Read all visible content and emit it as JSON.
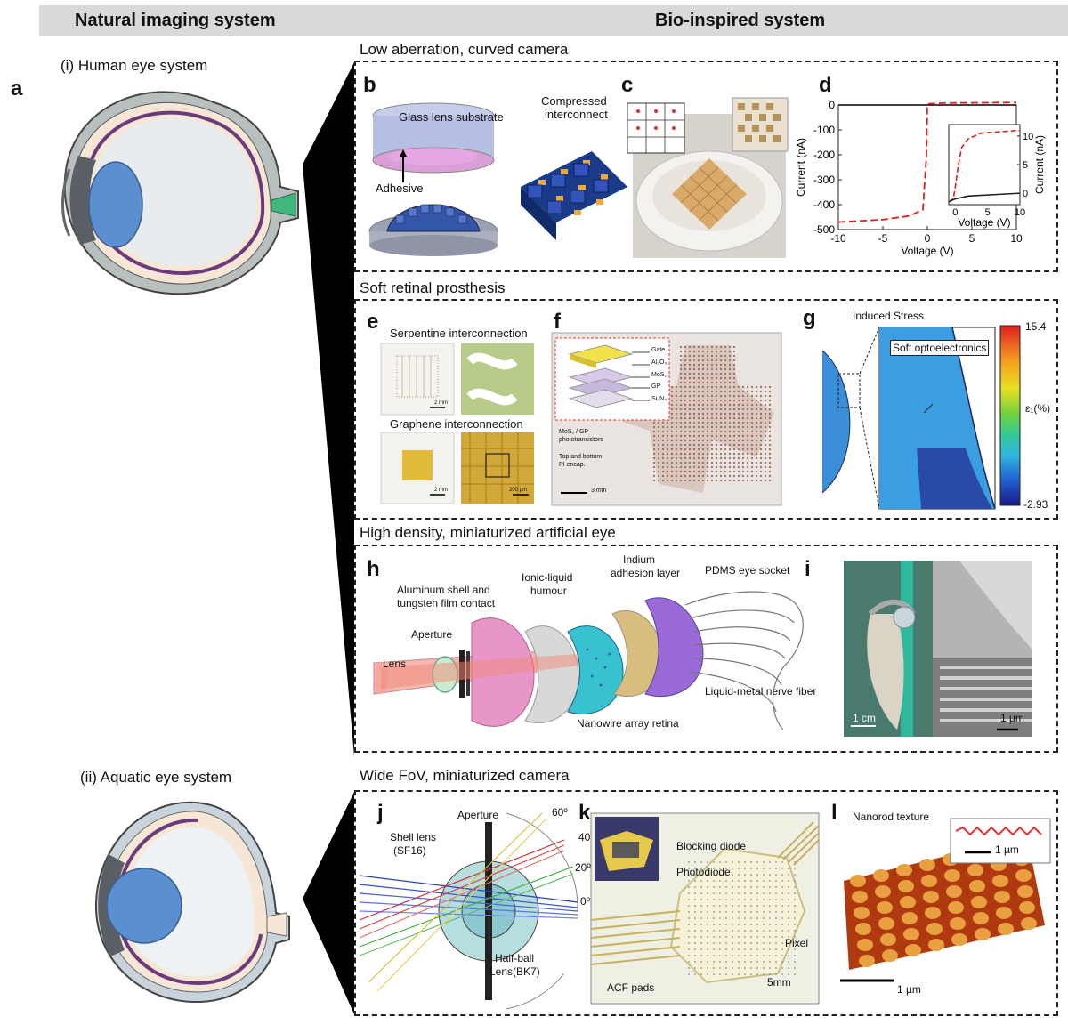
{
  "header": {
    "left": "Natural imaging system",
    "right": "Bio-inspired system"
  },
  "natural": {
    "panel_a": "a",
    "human": "(i) Human eye system",
    "aquatic": "(ii) Aquatic eye system"
  },
  "sections": {
    "s1": "Low aberration, curved camera",
    "s2": "Soft retinal prosthesis",
    "s3": "High density, miniaturized artificial eye",
    "s4": "Wide FoV, miniaturized camera"
  },
  "panels": {
    "b": "b",
    "c": "c",
    "d": "d",
    "e": "e",
    "f": "f",
    "g": "g",
    "h": "h",
    "i": "i",
    "j": "j",
    "k": "k",
    "l": "l"
  },
  "b": {
    "glass": "Glass lens substrate",
    "adhesive": "Adhesive",
    "compressed": "Compressed",
    "interconnect": "interconnect"
  },
  "chart_data": {
    "type": "line",
    "xlabel": "Voltage (V)",
    "ylabel": "Current (nA)",
    "xlim": [
      -10,
      10
    ],
    "ylim": [
      -500,
      0
    ],
    "xticks": [
      "-10",
      "-5",
      "0",
      "5",
      "10"
    ],
    "yticks": [
      "0",
      "-100",
      "-200",
      "-300",
      "-400",
      "-500"
    ],
    "series": [
      {
        "style": "dashed",
        "color": "#e02020",
        "x": [
          -10,
          -5,
          -2,
          -0.5,
          -0.1,
          0,
          0.2,
          2,
          10
        ],
        "y": [
          -470,
          -460,
          -445,
          -420,
          -200,
          0,
          5,
          8,
          10
        ]
      },
      {
        "style": "solid",
        "color": "#222222",
        "x": [
          -10,
          0,
          10
        ],
        "y": [
          0,
          0,
          0
        ]
      }
    ],
    "inset": {
      "xlabel": "Voltage (V)",
      "ylabel": "Current (nA)",
      "xlim": [
        -1,
        10
      ],
      "ylim": [
        -2,
        12
      ],
      "xticks": [
        "0",
        "5",
        "10"
      ],
      "yticks": [
        "10",
        "5",
        "0"
      ],
      "series": [
        {
          "style": "dashed",
          "color": "#e02020",
          "x": [
            -1,
            -0.3,
            0,
            0.5,
            1,
            2,
            4,
            10
          ],
          "y": [
            -1.5,
            -1,
            1,
            5,
            8,
            9.5,
            10.5,
            11
          ]
        },
        {
          "style": "solid",
          "color": "#222222",
          "x": [
            -1,
            0,
            2,
            10
          ],
          "y": [
            -1.5,
            -1,
            -0.5,
            0
          ]
        }
      ]
    }
  },
  "e": {
    "serpentine": "Serpentine interconnection",
    "graphene": "Graphene interconnection",
    "scale1": "2 mm",
    "scale2": "2 mm",
    "scale3": "200 µm"
  },
  "f": {
    "gate": "Gate",
    "al2o3": "Al₂O₃",
    "mos2": "MoS₂",
    "gp": "GP",
    "si3n4": "Si₃N₄",
    "photo1": "MoS₂ / GP",
    "photo2": "phototransistors",
    "encap1": "Top and bottom",
    "encap2": "PI encap.",
    "scale": "3 mm"
  },
  "g": {
    "title": "Induced Stress",
    "soft": "Soft optoelectronics",
    "max": "15.4",
    "min": "-2.93",
    "unit": "ε₁(%)"
  },
  "h": {
    "aluminum1": "Aluminum shell and",
    "aluminum2": "tungsten film contact",
    "aperture": "Aperture",
    "lens": "Lens",
    "ionic1": "Ionic-liquid",
    "ionic2": "humour",
    "indium1": "Indium",
    "indium2": "adhesion layer",
    "pdms": "PDMS eye socket",
    "nerve": "Liquid-metal nerve fiber",
    "nanowire": "Nanowire array retina"
  },
  "i": {
    "scale1": "1 cm",
    "scale2": "1 µm"
  },
  "j": {
    "aperture": "Aperture",
    "shell1": "Shell lens",
    "shell2": "(SF16)",
    "half1": "Half-ball",
    "half2": "Lens(BK7)",
    "a60": "60º",
    "a40": "40º",
    "a20": "20º",
    "a0": "0º"
  },
  "k": {
    "blocking": "Blocking diode",
    "photodiode": "Photodiode",
    "pixel": "Pixel",
    "acf": "ACF pads",
    "scale": "5mm"
  },
  "l": {
    "nanorod": "Nanorod texture",
    "scale_inset": "1 µm",
    "scale": "1 µm"
  }
}
